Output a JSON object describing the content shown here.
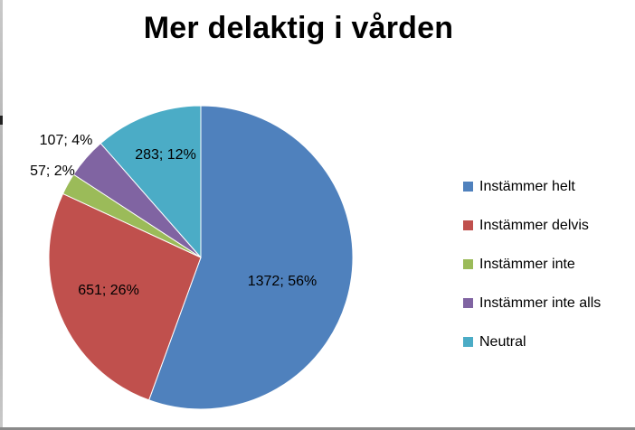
{
  "chart_data": {
    "type": "pie",
    "title": "Mer delaktig i vården",
    "start_angle_deg": 0,
    "direction": "clockwise",
    "legend_position": "right",
    "slices": [
      {
        "name": "Instämmer helt",
        "value": 1372,
        "percent": 56,
        "label": "1372; 56%",
        "color": "#4F81BD"
      },
      {
        "name": "Instämmer delvis",
        "value": 651,
        "percent": 26,
        "label": "651; 26%",
        "color": "#C0504D"
      },
      {
        "name": "Instämmer inte",
        "value": 57,
        "percent": 2,
        "label": "57; 2%",
        "color": "#9BBB59"
      },
      {
        "name": "Instämmer inte alls",
        "value": 107,
        "percent": 4,
        "label": "107; 4%",
        "color": "#8064A2"
      },
      {
        "name": "Neutral",
        "value": 283,
        "percent": 12,
        "label": "283; 12%",
        "color": "#4BACC6"
      }
    ]
  }
}
